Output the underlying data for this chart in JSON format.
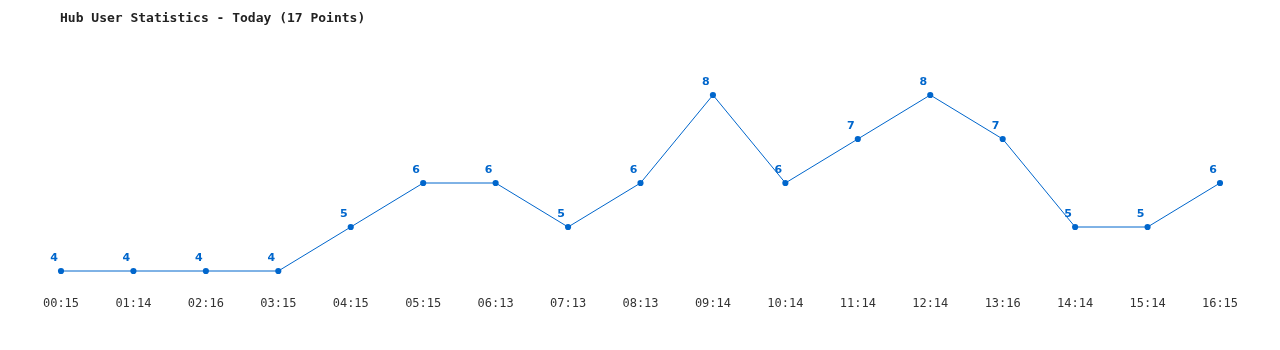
{
  "chart_data": {
    "type": "line",
    "title": "Hub User Statistics - Today (17 Points)",
    "categories": [
      "00:15",
      "01:14",
      "02:16",
      "03:15",
      "04:15",
      "05:15",
      "06:13",
      "07:13",
      "08:13",
      "09:14",
      "10:14",
      "11:14",
      "12:14",
      "13:16",
      "14:14",
      "15:14",
      "16:15"
    ],
    "series": [
      {
        "color": "#0066cc",
        "values": [
          4,
          4,
          4,
          4,
          5,
          6,
          6,
          5,
          6,
          8,
          6,
          7,
          8,
          7,
          5,
          5,
          6
        ]
      }
    ],
    "data_labels": true,
    "marker": "circle",
    "grid": false
  }
}
